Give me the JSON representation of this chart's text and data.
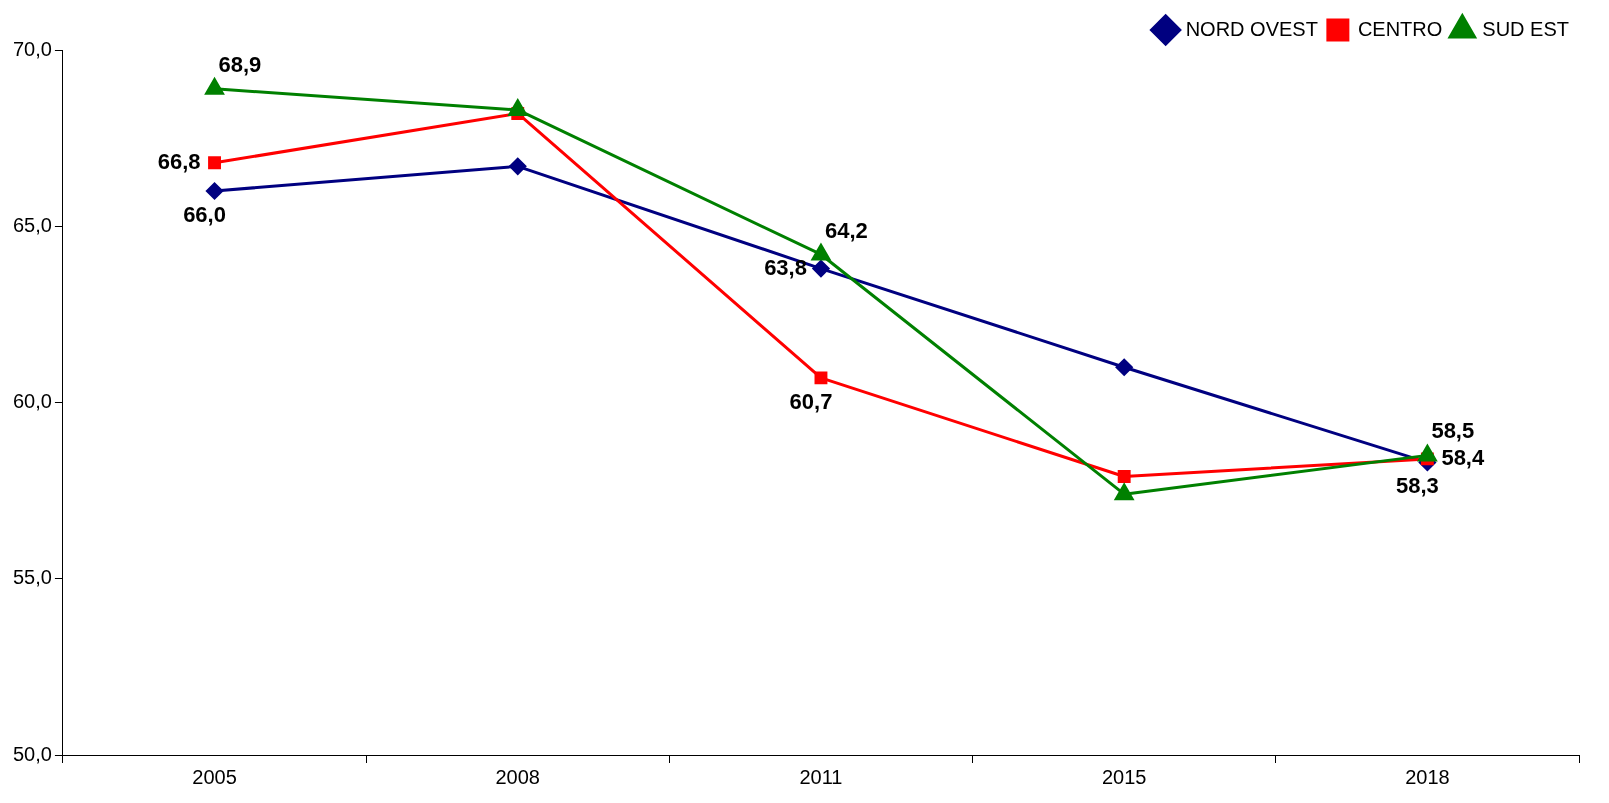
{
  "chart_data": {
    "type": "line",
    "categories": [
      "2005",
      "2008",
      "2011",
      "2015",
      "2018"
    ],
    "series": [
      {
        "name": "NORD OVEST",
        "color": "#000080",
        "marker": "diamond",
        "values": [
          66.0,
          66.7,
          63.8,
          61.0,
          58.3
        ],
        "value_labels": [
          "66,0",
          null,
          "63,8",
          null,
          "58,3"
        ]
      },
      {
        "name": "CENTRO",
        "color": "#ff0000",
        "marker": "square",
        "values": [
          66.8,
          68.2,
          60.7,
          57.9,
          58.4
        ],
        "value_labels": [
          "66,8",
          null,
          "60,7",
          null,
          "58,4"
        ]
      },
      {
        "name": "SUD EST",
        "color": "#008000",
        "marker": "triangle",
        "values": [
          68.9,
          68.3,
          64.2,
          57.4,
          58.5
        ],
        "value_labels": [
          "68,9",
          null,
          "64,2",
          null,
          "58,5"
        ]
      }
    ],
    "ylim": [
      50,
      70
    ],
    "yticks": [
      {
        "value": 50,
        "label": "50,0"
      },
      {
        "value": 55,
        "label": "55,0"
      },
      {
        "value": 60,
        "label": "60,0"
      },
      {
        "value": 65,
        "label": "65,0"
      },
      {
        "value": 70,
        "label": "70,0"
      }
    ],
    "grid": false,
    "legend": "top right",
    "line_style": "solid"
  }
}
